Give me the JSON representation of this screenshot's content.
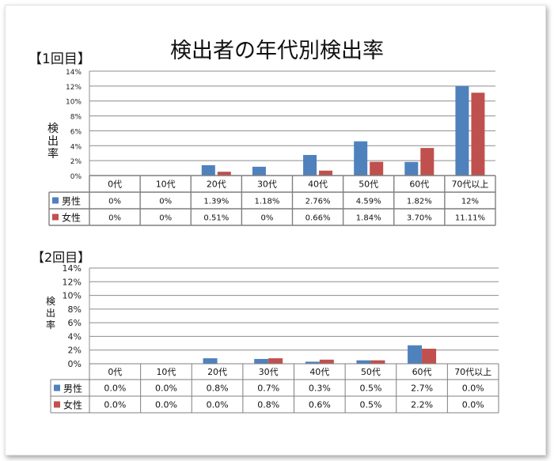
{
  "title": "検出者の年代別検出率",
  "legend_male": "男性",
  "legend_female": "女性",
  "colors": {
    "male": "#4f81bd",
    "female": "#c0504d",
    "grid": "#8c8c8c",
    "table_border": "#7f7f7f"
  },
  "chart_data": [
    {
      "type": "bar",
      "label": "【1回目】",
      "ylabel": "検出率",
      "ylim": [
        0,
        14
      ],
      "yticks": [
        "0%",
        "2%",
        "4%",
        "6%",
        "8%",
        "10%",
        "12%",
        "14%"
      ],
      "grid": true,
      "categories": [
        "0代",
        "10代",
        "20代",
        "30代",
        "40代",
        "50代",
        "60代",
        "70代以上"
      ],
      "series": [
        {
          "name": "男性",
          "values": [
            0,
            0,
            1.39,
            1.18,
            2.76,
            4.59,
            1.82,
            12
          ],
          "labels": [
            "0%",
            "0%",
            "1.39%",
            "1.18%",
            "2.76%",
            "4.59%",
            "1.82%",
            "12%"
          ]
        },
        {
          "name": "女性",
          "values": [
            0,
            0,
            0.51,
            0,
            0.66,
            1.84,
            3.7,
            11.11
          ],
          "labels": [
            "0%",
            "0%",
            "0.51%",
            "0%",
            "0.66%",
            "1.84%",
            "3.70%",
            "11.11%"
          ]
        }
      ]
    },
    {
      "type": "bar",
      "label": "【2回目】",
      "ylabel": "検出率",
      "ylim": [
        0,
        14
      ],
      "yticks": [
        "0%",
        "2%",
        "4%",
        "6%",
        "8%",
        "10%",
        "12%",
        "14%"
      ],
      "grid": true,
      "categories": [
        "0代",
        "10代",
        "20代",
        "30代",
        "40代",
        "50代",
        "60代",
        "70代以上"
      ],
      "series": [
        {
          "name": "男性",
          "values": [
            0.0,
            0.0,
            0.8,
            0.7,
            0.3,
            0.5,
            2.7,
            0.0
          ],
          "labels": [
            "0.0%",
            "0.0%",
            "0.8%",
            "0.7%",
            "0.3%",
            "0.5%",
            "2.7%",
            "0.0%"
          ]
        },
        {
          "name": "女性",
          "values": [
            0.0,
            0.0,
            0.0,
            0.8,
            0.6,
            0.5,
            2.2,
            0.0
          ],
          "labels": [
            "0.0%",
            "0.0%",
            "0.0%",
            "0.8%",
            "0.6%",
            "0.5%",
            "2.2%",
            "0.0%"
          ]
        }
      ]
    }
  ]
}
